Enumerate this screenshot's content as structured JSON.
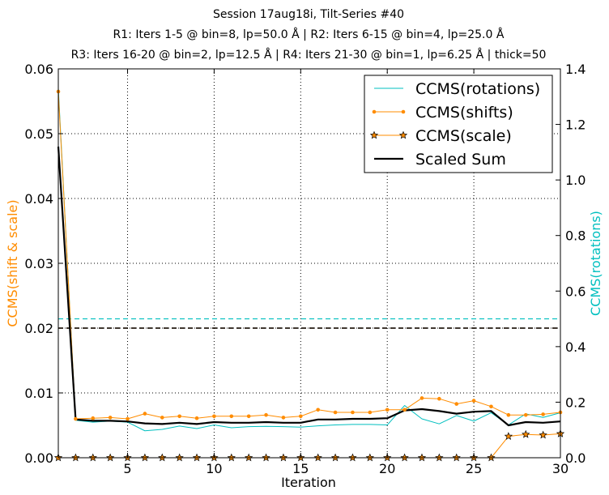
{
  "chart_data": {
    "type": "line",
    "title": [
      "Session 17aug18i, Tilt-Series #40",
      "R1: Iters 1-5 @ bin=8, lp=50.0 Å | R2: Iters 6-15 @ bin=4, lp=25.0 Å",
      "R3: Iters 16-20 @ bin=2, lp=12.5 Å | R4: Iters 21-30 @ bin=1, lp=6.25 Å | thick=50"
    ],
    "xlabel": "Iteration",
    "ylabel_left": "CCMS(shift & scale)",
    "ylabel_right": "CCMS(rotations)",
    "xlim": [
      1,
      30
    ],
    "ylim_left": [
      0,
      0.06
    ],
    "ylim_right": [
      0,
      1.4
    ],
    "xticks": [
      5,
      10,
      15,
      20,
      25,
      30
    ],
    "yticks_left": [
      "0.00",
      "0.01",
      "0.02",
      "0.03",
      "0.04",
      "0.05",
      "0.06"
    ],
    "yticks_right": [
      "0.0",
      "0.2",
      "0.4",
      "0.6",
      "0.8",
      "1.0",
      "1.2",
      "1.4"
    ],
    "grid": true,
    "legend_position": "top-right",
    "x": [
      1,
      2,
      3,
      4,
      5,
      6,
      7,
      8,
      9,
      10,
      11,
      12,
      13,
      14,
      15,
      16,
      17,
      18,
      19,
      20,
      21,
      22,
      23,
      24,
      25,
      26,
      27,
      28,
      29,
      30
    ],
    "series": [
      {
        "name": "CCMS(rotations)",
        "axis": "right",
        "color": "#00bfbf",
        "style": "line",
        "values": [
          1.33,
          0.135,
          0.128,
          0.132,
          0.128,
          0.097,
          0.102,
          0.114,
          0.105,
          0.118,
          0.108,
          0.112,
          0.113,
          0.112,
          0.11,
          0.115,
          0.118,
          0.12,
          0.12,
          0.118,
          0.188,
          0.14,
          0.122,
          0.152,
          0.132,
          0.162,
          0.118,
          0.158,
          0.145,
          0.162
        ]
      },
      {
        "name": "CCMS(shifts)",
        "axis": "left",
        "color": "#ff8c00",
        "style": "line-dot",
        "values": [
          0.0565,
          0.006,
          0.0061,
          0.0062,
          0.006,
          0.0068,
          0.0062,
          0.0064,
          0.0061,
          0.0064,
          0.0064,
          0.0064,
          0.0066,
          0.0062,
          0.0064,
          0.0074,
          0.007,
          0.007,
          0.007,
          0.0074,
          0.0074,
          0.0092,
          0.0091,
          0.0083,
          0.0088,
          0.0079,
          0.0066,
          0.0066,
          0.0067,
          0.007
        ]
      },
      {
        "name": "CCMS(scale)",
        "axis": "left",
        "color": "#ff8c00",
        "style": "line-star",
        "values": [
          0,
          0,
          0,
          0,
          0,
          0,
          0,
          0,
          0,
          0,
          0,
          0,
          0,
          0,
          0,
          0,
          0,
          0,
          0,
          0,
          0,
          0,
          0,
          0,
          0,
          0,
          0.0033,
          0.0036,
          0.0035,
          0.0037
        ]
      },
      {
        "name": "Scaled Sum",
        "axis": "left",
        "color": "#000000",
        "style": "line-thick",
        "values": [
          0.048,
          0.0059,
          0.0057,
          0.0057,
          0.0056,
          0.0053,
          0.0052,
          0.0054,
          0.0052,
          0.0055,
          0.0054,
          0.0054,
          0.0055,
          0.0054,
          0.0054,
          0.0059,
          0.0059,
          0.006,
          0.006,
          0.0061,
          0.0073,
          0.0075,
          0.0072,
          0.0068,
          0.0071,
          0.0072,
          0.005,
          0.0055,
          0.0054,
          0.0056
        ]
      }
    ],
    "reference_lines": [
      {
        "axis": "right",
        "value": 0.5,
        "color": "#00bfbf",
        "style": "dashed"
      },
      {
        "axis": "left",
        "value": 0.02,
        "color": "#ff8c00",
        "style": "dashed"
      },
      {
        "axis": "left",
        "value": 0.02,
        "color": "#000000",
        "style": "dashed"
      }
    ]
  }
}
